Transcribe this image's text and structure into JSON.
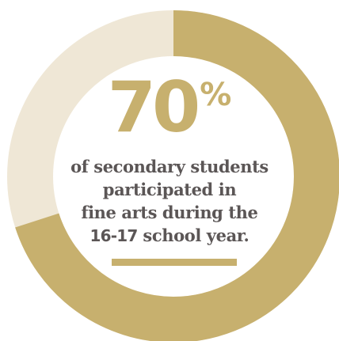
{
  "chart_data": {
    "type": "pie",
    "style": "donut",
    "values": [
      70,
      30
    ],
    "colors": [
      "#c7b06e",
      "#efe7d6"
    ],
    "title": "",
    "stat": {
      "value": "70",
      "symbol": "%"
    },
    "caption": {
      "line1": "of secondary students",
      "line2": "participated in",
      "line3": "fine arts during the",
      "line4_emph": "16-17",
      "line4_rest": " school year."
    }
  },
  "colors": {
    "accent": "#c7b06e",
    "track": "#efe7d6",
    "text": "#5b5656",
    "background": "#ffffff"
  }
}
